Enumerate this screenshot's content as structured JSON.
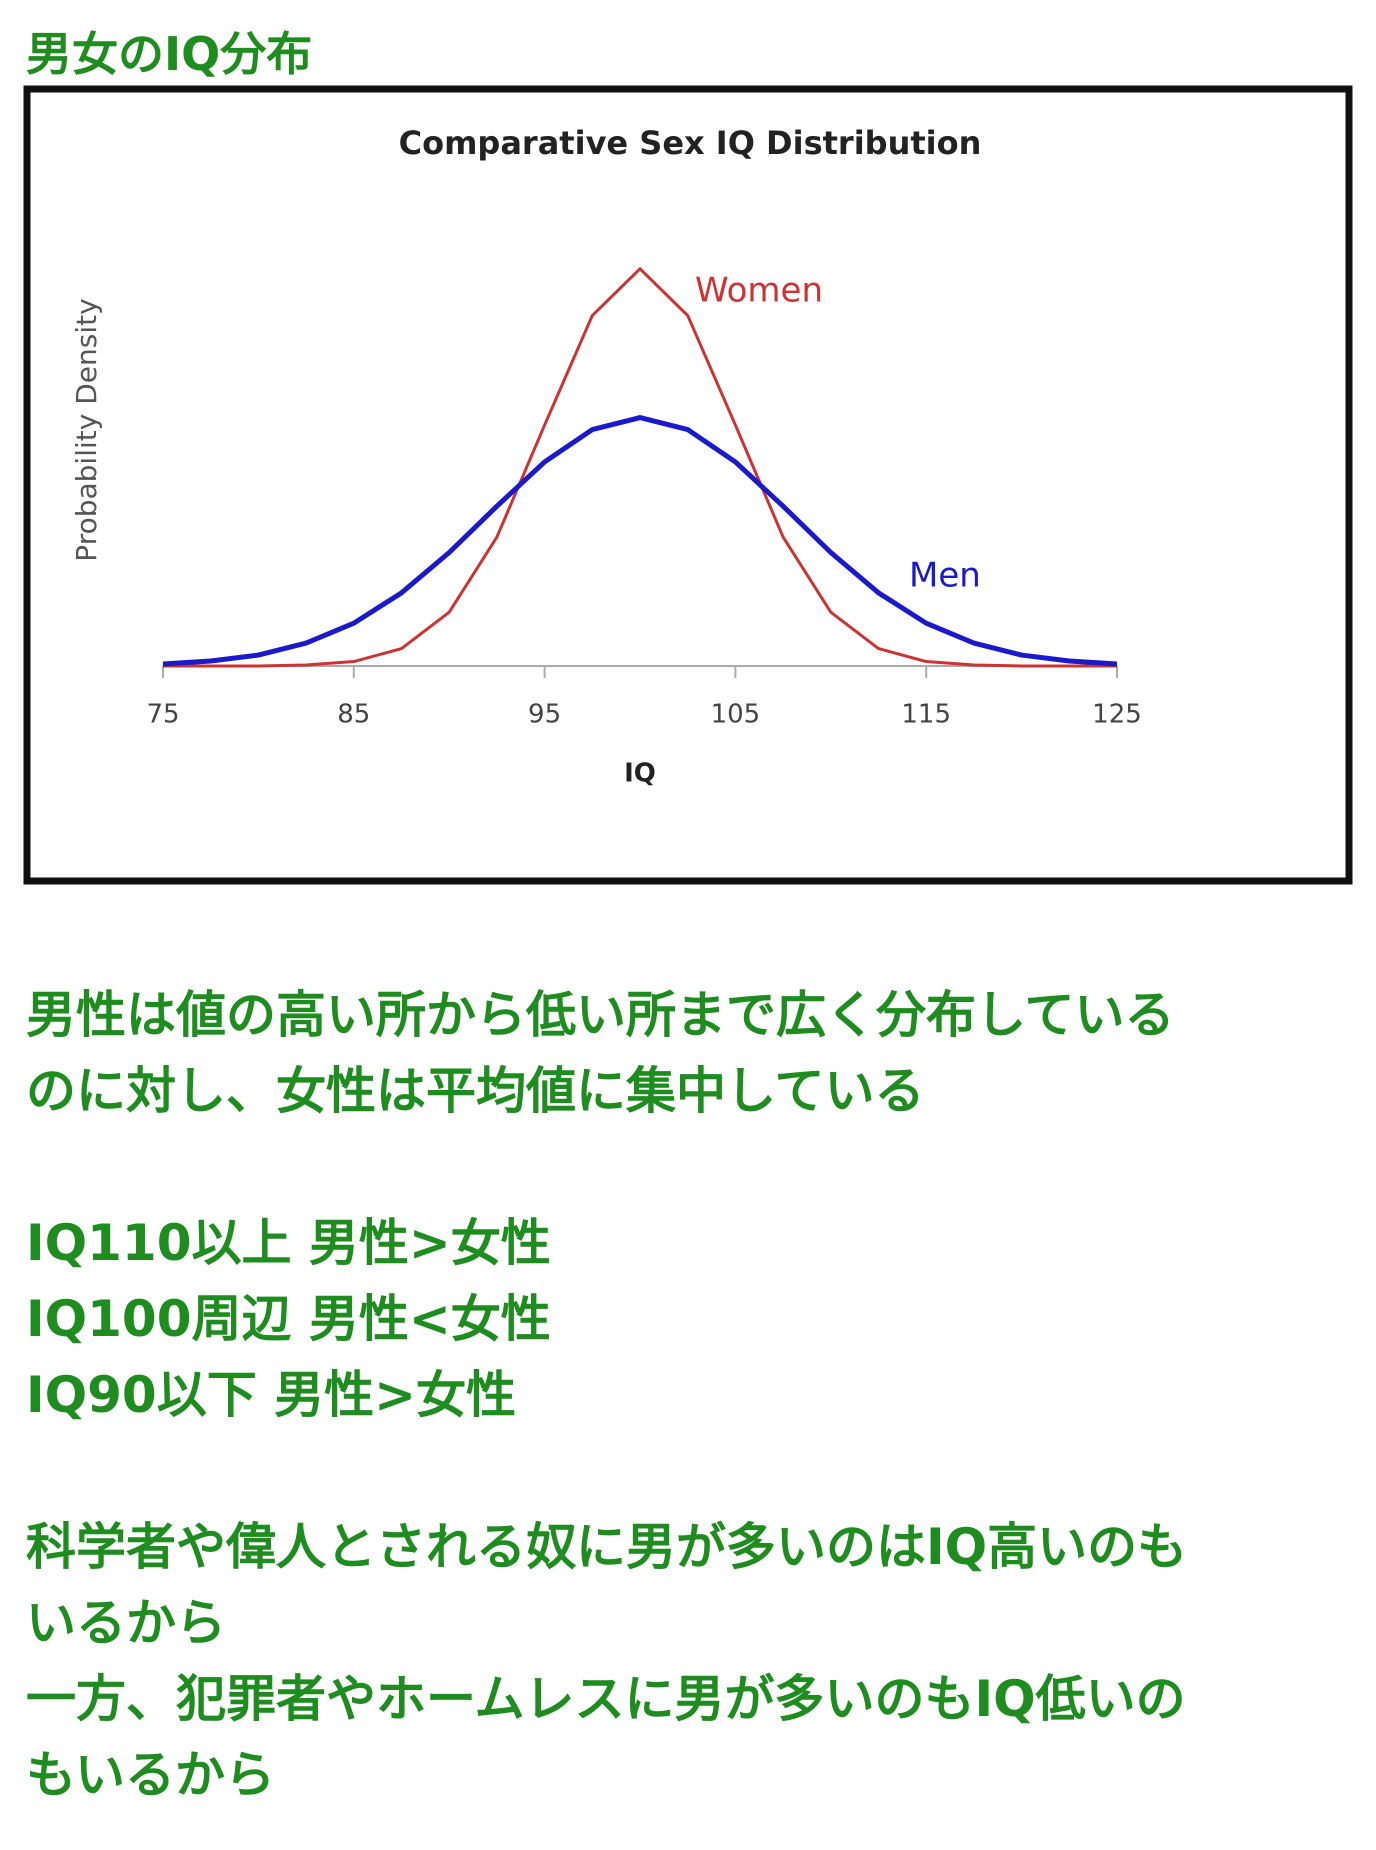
{
  "header": {
    "title": "男女のIQ分布"
  },
  "chart_data": {
    "type": "line",
    "title": "Comparative Sex IQ Distribution",
    "xlabel": "IQ",
    "ylabel": "Probability Density",
    "x": [
      75,
      77.5,
      80,
      82.5,
      85,
      87.5,
      90,
      92.5,
      95,
      97.5,
      100,
      102.5,
      105,
      107.5,
      110,
      112.5,
      115,
      117.5,
      120,
      122.5,
      125
    ],
    "series": [
      {
        "name": "Women",
        "color": "#cc3333",
        "values": [
          0.0,
          0.0,
          0.0,
          0.0002,
          0.0009,
          0.0035,
          0.0108,
          0.0259,
          0.0484,
          0.0704,
          0.0798,
          0.0704,
          0.0484,
          0.0259,
          0.0108,
          0.0035,
          0.0009,
          0.0002,
          0.0,
          0.0,
          0.0
        ]
      },
      {
        "name": "Men",
        "color": "#1a1acc",
        "values": [
          0.0004,
          0.001,
          0.0022,
          0.0046,
          0.0086,
          0.0147,
          0.0228,
          0.0321,
          0.041,
          0.0475,
          0.0499,
          0.0475,
          0.041,
          0.0321,
          0.0228,
          0.0147,
          0.0086,
          0.0046,
          0.0022,
          0.001,
          0.0004
        ]
      }
    ],
    "xlim": [
      75,
      125
    ],
    "xticks": [
      75,
      85,
      95,
      105,
      115,
      125
    ],
    "ylim": [
      0,
      0.09
    ]
  },
  "body": {
    "paragraphs": [
      [
        "男性は値の高い所から低い所まで広く分布している",
        "のに対し、女性は平均値に集中している"
      ],
      [
        "IQ110以上 男性>女性",
        "IQ100周辺 男性<女性",
        "IQ90以下 男性>女性"
      ],
      [
        "科学者や偉人とされる奴に男が多いのはIQ高いのも",
        "いるから",
        "一方、犯罪者やホームレスに男が多いのもIQ低いの",
        "もいるから"
      ]
    ]
  }
}
